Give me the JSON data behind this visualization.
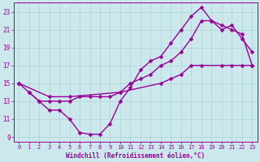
{
  "title": "",
  "xlabel": "Windchill (Refroidissement éolien,°C)",
  "bg_color": "#cce8ec",
  "line_color": "#990099",
  "xlim": [
    -0.5,
    23.5
  ],
  "ylim": [
    8.5,
    24.0
  ],
  "xticks": [
    0,
    1,
    2,
    3,
    4,
    5,
    6,
    7,
    8,
    9,
    10,
    11,
    12,
    13,
    14,
    15,
    16,
    17,
    18,
    19,
    20,
    21,
    22,
    23
  ],
  "yticks": [
    9,
    11,
    13,
    15,
    17,
    19,
    21,
    23
  ],
  "grid_color": "#aad4d8",
  "line1_x": [
    0,
    1,
    2,
    3,
    4,
    5,
    6,
    7,
    8,
    9,
    10,
    11,
    12,
    13,
    14,
    15,
    16,
    17,
    18,
    19,
    20,
    21,
    22,
    23
  ],
  "line1_y": [
    15,
    14,
    13,
    12,
    12,
    11,
    9.5,
    9.3,
    9.3,
    10.5,
    13,
    14.5,
    16.5,
    17.5,
    18,
    19.5,
    21,
    22.5,
    23.5,
    22,
    21,
    21.5,
    20,
    18.5
  ],
  "line2_x": [
    1,
    2,
    3,
    4,
    5,
    6,
    7,
    8,
    9,
    10,
    11,
    12,
    13,
    14,
    15,
    16,
    17,
    18,
    19,
    20,
    21,
    22,
    23
  ],
  "line2_y": [
    14,
    13,
    13,
    13,
    13,
    13.5,
    13.5,
    13.5,
    13.5,
    14,
    15,
    15.5,
    16,
    17,
    17.5,
    18.5,
    20,
    22,
    22,
    21.5,
    21,
    20.5,
    17
  ],
  "line3_x": [
    0,
    3,
    5,
    10,
    14,
    15,
    16,
    17,
    18,
    20,
    21,
    22,
    23
  ],
  "line3_y": [
    15,
    13.5,
    13.5,
    14,
    15,
    15.5,
    16,
    17,
    17,
    17,
    17,
    17,
    17
  ],
  "marker": "D",
  "markersize": 2.5,
  "linewidth": 1.0,
  "tick_fontsize": 5.5,
  "xlabel_fontsize": 5.5
}
